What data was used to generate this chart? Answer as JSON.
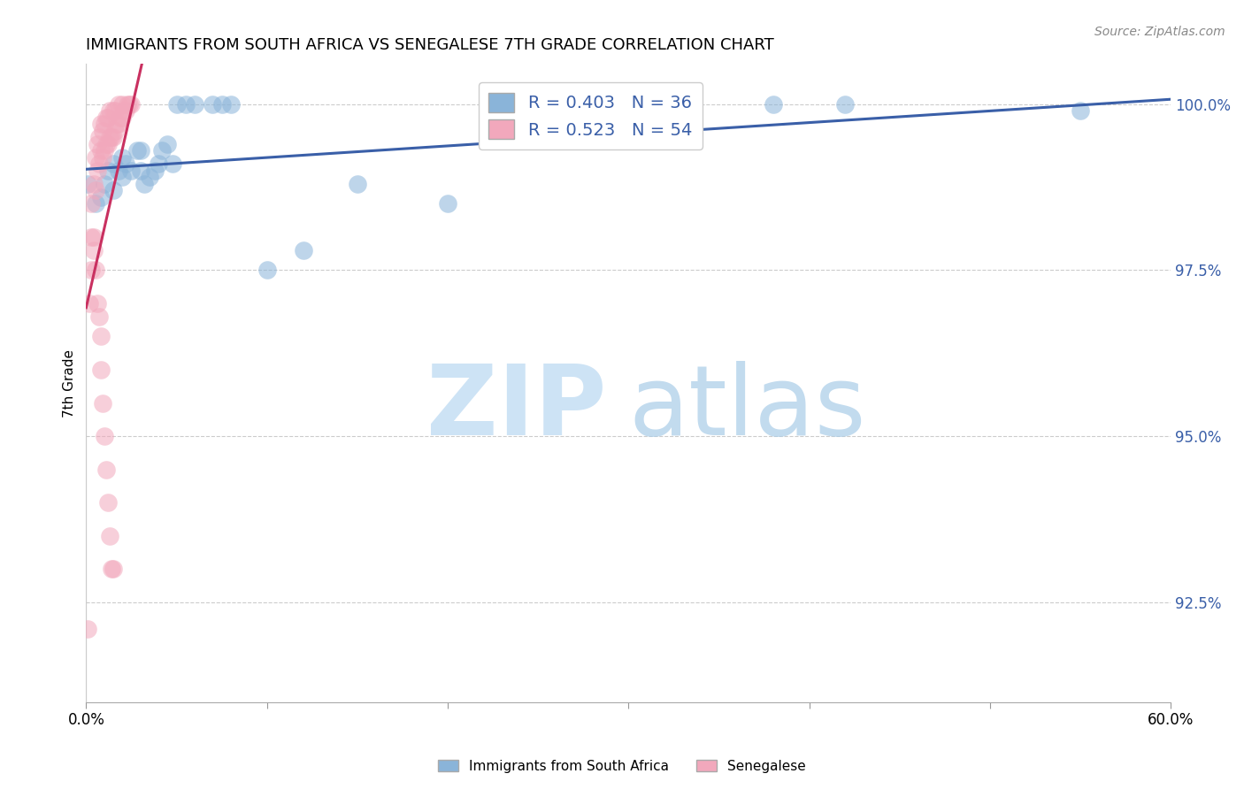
{
  "title": "IMMIGRANTS FROM SOUTH AFRICA VS SENEGALESE 7TH GRADE CORRELATION CHART",
  "source": "Source: ZipAtlas.com",
  "ylabel": "7th Grade",
  "ylabel_right_labels": [
    "100.0%",
    "97.5%",
    "95.0%",
    "92.5%"
  ],
  "ylabel_right_values": [
    1.0,
    0.975,
    0.95,
    0.925
  ],
  "xlim": [
    0.0,
    0.6
  ],
  "ylim": [
    0.91,
    1.006
  ],
  "legend_blue_label": "R = 0.403   N = 36",
  "legend_pink_label": "R = 0.523   N = 54",
  "blue_color": "#8ab4d9",
  "pink_color": "#f2a8bc",
  "trendline_blue": "#3a5fa8",
  "trendline_pink": "#c93060",
  "watermark_zip": "ZIP",
  "watermark_atlas": "atlas",
  "blue_scatter_x": [
    0.001,
    0.005,
    0.008,
    0.01,
    0.012,
    0.015,
    0.015,
    0.018,
    0.02,
    0.02,
    0.022,
    0.025,
    0.028,
    0.03,
    0.03,
    0.032,
    0.035,
    0.038,
    0.04,
    0.042,
    0.045,
    0.048,
    0.05,
    0.055,
    0.06,
    0.07,
    0.075,
    0.08,
    0.1,
    0.12,
    0.15,
    0.2,
    0.32,
    0.38,
    0.42,
    0.55
  ],
  "blue_scatter_y": [
    0.988,
    0.985,
    0.986,
    0.988,
    0.99,
    0.987,
    0.991,
    0.99,
    0.989,
    0.992,
    0.991,
    0.99,
    0.993,
    0.99,
    0.993,
    0.988,
    0.989,
    0.99,
    0.991,
    0.993,
    0.994,
    0.991,
    1.0,
    1.0,
    1.0,
    1.0,
    1.0,
    1.0,
    0.975,
    0.978,
    0.988,
    0.985,
    0.998,
    1.0,
    1.0,
    0.999
  ],
  "pink_scatter_x": [
    0.001,
    0.002,
    0.003,
    0.003,
    0.004,
    0.004,
    0.005,
    0.005,
    0.006,
    0.006,
    0.007,
    0.007,
    0.008,
    0.008,
    0.009,
    0.009,
    0.01,
    0.01,
    0.011,
    0.011,
    0.012,
    0.012,
    0.013,
    0.013,
    0.014,
    0.015,
    0.015,
    0.016,
    0.016,
    0.017,
    0.018,
    0.018,
    0.019,
    0.02,
    0.02,
    0.021,
    0.022,
    0.023,
    0.024,
    0.025,
    0.008,
    0.009,
    0.01,
    0.011,
    0.012,
    0.013,
    0.014,
    0.015,
    0.003,
    0.004,
    0.005,
    0.006,
    0.007,
    0.008
  ],
  "pink_scatter_y": [
    0.921,
    0.97,
    0.975,
    0.985,
    0.98,
    0.988,
    0.987,
    0.992,
    0.99,
    0.994,
    0.991,
    0.995,
    0.993,
    0.997,
    0.992,
    0.996,
    0.993,
    0.997,
    0.994,
    0.998,
    0.994,
    0.998,
    0.995,
    0.999,
    0.995,
    0.995,
    0.999,
    0.996,
    0.999,
    0.997,
    0.997,
    1.0,
    0.998,
    0.998,
    1.0,
    0.999,
    0.999,
    1.0,
    1.0,
    1.0,
    0.96,
    0.955,
    0.95,
    0.945,
    0.94,
    0.935,
    0.93,
    0.93,
    0.98,
    0.978,
    0.975,
    0.97,
    0.968,
    0.965
  ],
  "x_tick_positions": [
    0.0,
    0.1,
    0.2,
    0.3,
    0.4,
    0.5,
    0.6
  ],
  "bottom_legend_labels": [
    "Immigrants from South Africa",
    "Senegalese"
  ]
}
